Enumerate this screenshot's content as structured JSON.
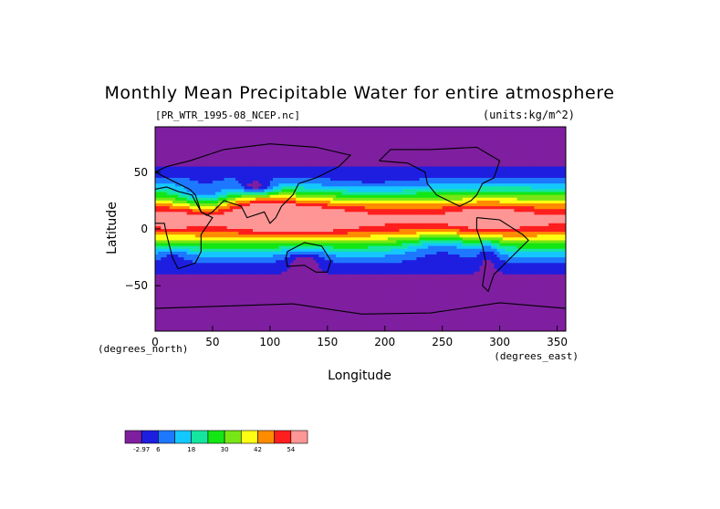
{
  "chart_data": {
    "type": "heatmap",
    "title": "Monthly Mean Precipitable Water for entire atmosphere",
    "subtitle_left": "[PR_WTR_1995-08_NCEP.nc]",
    "subtitle_right": "(units:kg/m^2)",
    "xlabel": "Longitude",
    "ylabel": "Latitude",
    "x_unit_label": "(degrees_east)",
    "y_unit_label": "(degrees_north)",
    "xlim": [
      0,
      357.5
    ],
    "ylim": [
      -90,
      90
    ],
    "x_ticks": [
      0,
      50,
      100,
      150,
      200,
      250,
      300,
      350
    ],
    "y_ticks": [
      -50,
      0,
      50
    ],
    "x_tick_labels": [
      "0",
      "50",
      "100",
      "150",
      "200",
      "250",
      "300",
      "350"
    ],
    "y_tick_labels": [
      "−50",
      "0",
      "50"
    ],
    "colorbar": {
      "colors": [
        "#7f1fa0",
        "#1e1ee0",
        "#1e78ff",
        "#14c8ff",
        "#14e6a0",
        "#14e614",
        "#78e614",
        "#ffff14",
        "#ff8c00",
        "#ff1e1e",
        "#ff9696"
      ],
      "tick_labels": [
        "-2.97",
        "6",
        "18",
        "30",
        "42",
        "54"
      ]
    }
  }
}
